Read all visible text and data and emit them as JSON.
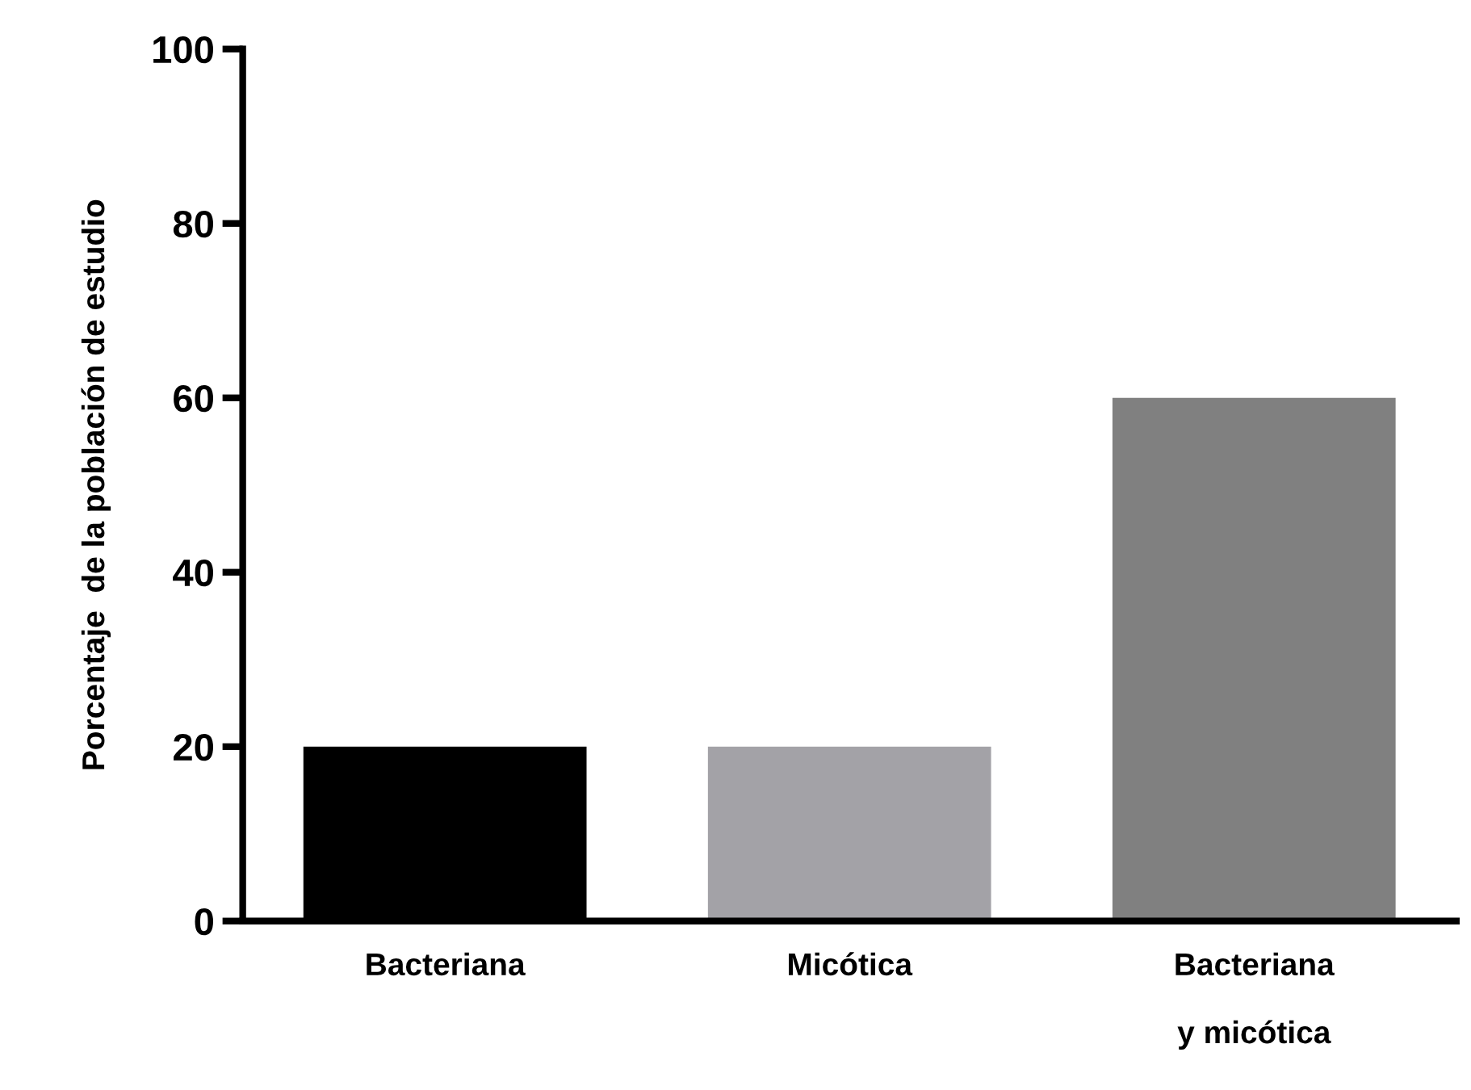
{
  "chart_data": {
    "type": "bar",
    "ylabel": "Porcentaje  de la población de estudio",
    "categories": [
      "Bacteriana",
      "Micótica",
      "Bacteriana\n\ny micótica"
    ],
    "values": [
      20,
      20,
      60
    ],
    "colors": [
      "#000000",
      "#a3a2a7",
      "#808080"
    ],
    "ylim": [
      0,
      100
    ],
    "yticks": [
      0,
      20,
      40,
      60,
      80,
      100
    ],
    "grid": false,
    "legend": false
  }
}
